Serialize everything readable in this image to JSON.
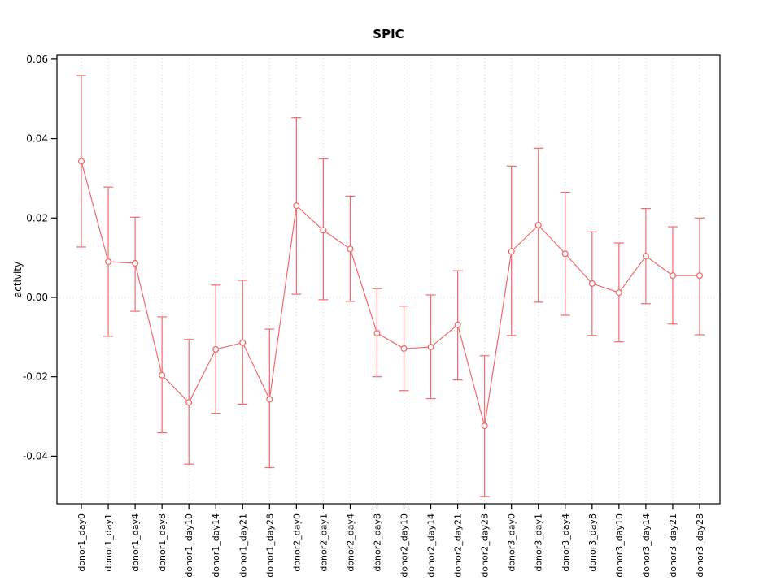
{
  "page": {
    "background": "#ffffff"
  },
  "chart_data": {
    "type": "line",
    "title": "SPIC",
    "xlabel": "",
    "ylabel": "activity",
    "ylim": [
      -0.052,
      0.061
    ],
    "yticks": [
      -0.04,
      -0.02,
      0,
      0.02,
      0.04,
      0.06
    ],
    "legend": "none",
    "grid": "vertical dotted gridline at each category plus dotted horizontal line at y=0",
    "point_style": "open-circle",
    "error_bars": true,
    "categories": [
      "donor1_day0",
      "donor1_day1",
      "donor1_day4",
      "donor1_day8",
      "donor1_day10",
      "donor1_day14",
      "donor1_day21",
      "donor1_day28",
      "donor2_day0",
      "donor2_day1",
      "donor2_day4",
      "donor2_day8",
      "donor2_day10",
      "donor2_day14",
      "donor2_day21",
      "donor2_day28",
      "donor3_day0",
      "donor3_day1",
      "donor3_day4",
      "donor3_day8",
      "donor3_day10",
      "donor3_day14",
      "donor3_day21",
      "donor3_day28"
    ],
    "series": [
      {
        "name": "activity",
        "values": [
          0.0343,
          0.009,
          0.0086,
          -0.0196,
          -0.0265,
          -0.0131,
          -0.0114,
          -0.0257,
          0.0231,
          0.0169,
          0.0122,
          -0.009,
          -0.0129,
          -0.0125,
          -0.0069,
          -0.0324,
          0.0116,
          0.0182,
          0.011,
          0.0035,
          0.0012,
          0.0104,
          0.0055,
          0.0055
        ],
        "ci_high": [
          0.0559,
          0.0278,
          0.0202,
          -0.0049,
          -0.0106,
          0.0031,
          0.0043,
          -0.008,
          0.0453,
          0.0349,
          0.0255,
          0.0022,
          -0.0022,
          0.0006,
          0.0067,
          -0.0147,
          0.0331,
          0.0376,
          0.0265,
          0.0165,
          0.0137,
          0.0224,
          0.0178,
          0.02
        ],
        "ci_low": [
          0.0127,
          -0.0098,
          -0.0035,
          -0.0341,
          -0.042,
          -0.0292,
          -0.0269,
          -0.0429,
          0.0008,
          -0.0006,
          -0.001,
          -0.02,
          -0.0235,
          -0.0255,
          -0.0208,
          -0.0502,
          -0.0096,
          -0.0012,
          -0.0045,
          -0.0096,
          -0.0112,
          -0.0016,
          -0.0067,
          -0.0094
        ]
      }
    ],
    "colors": {
      "series": "#f4696b",
      "grid": "#d9d9d9",
      "axis": "#000000",
      "background": "#ffffff"
    }
  }
}
